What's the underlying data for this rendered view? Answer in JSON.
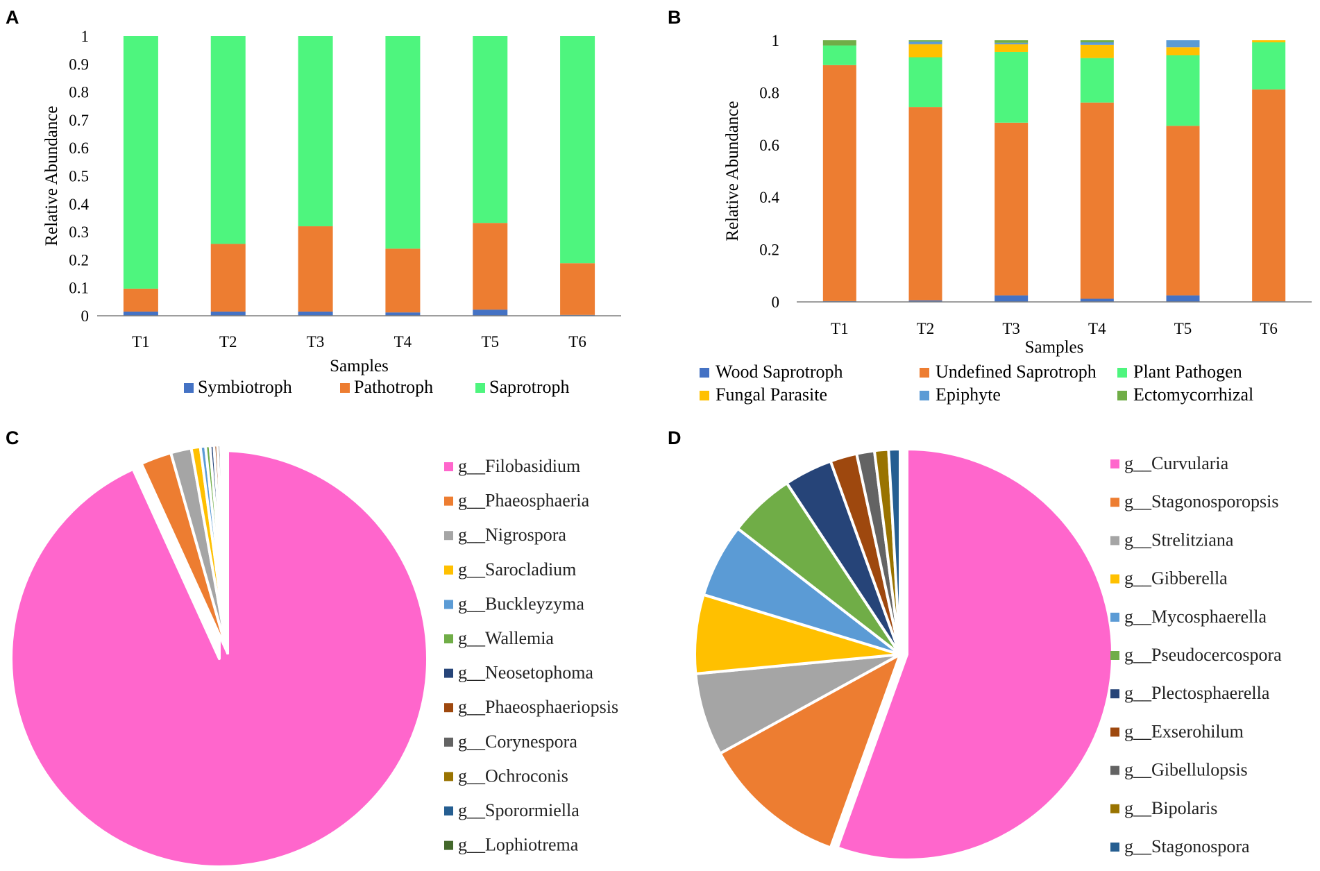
{
  "panels": {
    "A": "A",
    "B": "B",
    "C": "C",
    "D": "D"
  },
  "chart_data": [
    {
      "id": "A",
      "type": "bar",
      "stacked": true,
      "title": "",
      "xlabel": "Samples",
      "ylabel": "Relative Abundance",
      "ylim": [
        0,
        1
      ],
      "yticks": [
        0,
        0.1,
        0.2,
        0.3,
        0.4,
        0.5,
        0.6,
        0.7,
        0.8,
        0.9,
        1
      ],
      "ytick_labels": [
        "0",
        "0.1",
        "0.2",
        "0.3",
        "0.4",
        "0.5",
        "0.6",
        "0.7",
        "0.8",
        "0.9",
        "1"
      ],
      "categories": [
        "T1",
        "T2",
        "T3",
        "T4",
        "T5",
        "T6"
      ],
      "legend_position": "bottom",
      "series": [
        {
          "name": "Symbiotroph",
          "color": "#4472C4",
          "values": [
            0.015,
            0.015,
            0.015,
            0.012,
            0.022,
            0.003
          ]
        },
        {
          "name": "Pathotroph",
          "color": "#ED7D31",
          "values": [
            0.082,
            0.242,
            0.305,
            0.228,
            0.31,
            0.185
          ]
        },
        {
          "name": "Saprotroph",
          "color": "#4EF57E",
          "values": [
            0.903,
            0.743,
            0.68,
            0.76,
            0.668,
            0.812
          ]
        }
      ]
    },
    {
      "id": "B",
      "type": "bar",
      "stacked": true,
      "title": "",
      "xlabel": "Samples",
      "ylabel": "Relative Abundance",
      "ylim": [
        0,
        1
      ],
      "yticks": [
        0,
        0.2,
        0.4,
        0.6,
        0.8,
        1
      ],
      "ytick_labels": [
        "0",
        "0.2",
        "0.4",
        "0.6",
        "0.8",
        "1"
      ],
      "categories": [
        "T1",
        "T2",
        "T3",
        "T4",
        "T5",
        "T6"
      ],
      "legend_position": "bottom",
      "series": [
        {
          "name": "Wood Saprotroph",
          "color": "#4472C4",
          "values": [
            0.003,
            0.006,
            0.025,
            0.012,
            0.025,
            0.002
          ]
        },
        {
          "name": "Undefined Saprotroph",
          "color": "#ED7D31",
          "values": [
            0.902,
            0.739,
            0.66,
            0.75,
            0.648,
            0.81
          ]
        },
        {
          "name": "Plant Pathogen",
          "color": "#4EF57E",
          "values": [
            0.075,
            0.19,
            0.27,
            0.17,
            0.27,
            0.18
          ]
        },
        {
          "name": "Fungal Parasite",
          "color": "#FFC000",
          "values": [
            0.0,
            0.05,
            0.03,
            0.05,
            0.03,
            0.008
          ]
        },
        {
          "name": "Epiphyte",
          "color": "#5B9BD5",
          "values": [
            0.0,
            0.01,
            0.005,
            0.01,
            0.027,
            0.0
          ]
        },
        {
          "name": "Ectomycorrhizal",
          "color": "#70AD47",
          "values": [
            0.02,
            0.005,
            0.01,
            0.008,
            0.0,
            0.0
          ]
        }
      ]
    },
    {
      "id": "C",
      "type": "pie",
      "title": "",
      "legend_position": "right",
      "labels": [
        "g__Filobasidium",
        "g__Phaeosphaeria",
        "g__Nigrospora",
        "g__Sarocladium",
        "g__Buckleyzyma",
        "g__Wallemia",
        "g__Neosetophoma",
        "g__Phaeosphaeriopsis",
        "g__Corynespora",
        "g__Ochroconis",
        "g__Sporormiella",
        "g__Lophiotrema"
      ],
      "values": [
        93.2,
        2.4,
        1.6,
        0.7,
        0.4,
        0.35,
        0.3,
        0.27,
        0.25,
        0.2,
        0.18,
        0.15
      ],
      "colors": [
        "#FF66CC",
        "#ED7D31",
        "#A5A5A5",
        "#FFC000",
        "#5B9BD5",
        "#70AD47",
        "#264478",
        "#9E480E",
        "#636363",
        "#997300",
        "#255E91",
        "#43682B"
      ]
    },
    {
      "id": "D",
      "type": "pie",
      "title": "",
      "legend_position": "right",
      "labels": [
        "g__Curvularia",
        "g__Stagonosporopsis",
        "g__Strelitziana",
        "g__Gibberella",
        "g__Mycosphaerella",
        "g__Pseudocercospora",
        "g__Plectosphaerella",
        "g__Exserohilum",
        "g__Gibellulopsis",
        "g__Bipolaris",
        "g__Stagonospora"
      ],
      "values": [
        55.5,
        11.5,
        6.5,
        6.2,
        5.8,
        5.2,
        3.8,
        2.1,
        1.4,
        1.1,
        0.9
      ],
      "colors": [
        "#FF66CC",
        "#ED7D31",
        "#A5A5A5",
        "#FFC000",
        "#5B9BD5",
        "#70AD47",
        "#264478",
        "#9E480E",
        "#636363",
        "#997300",
        "#255E91"
      ]
    }
  ]
}
